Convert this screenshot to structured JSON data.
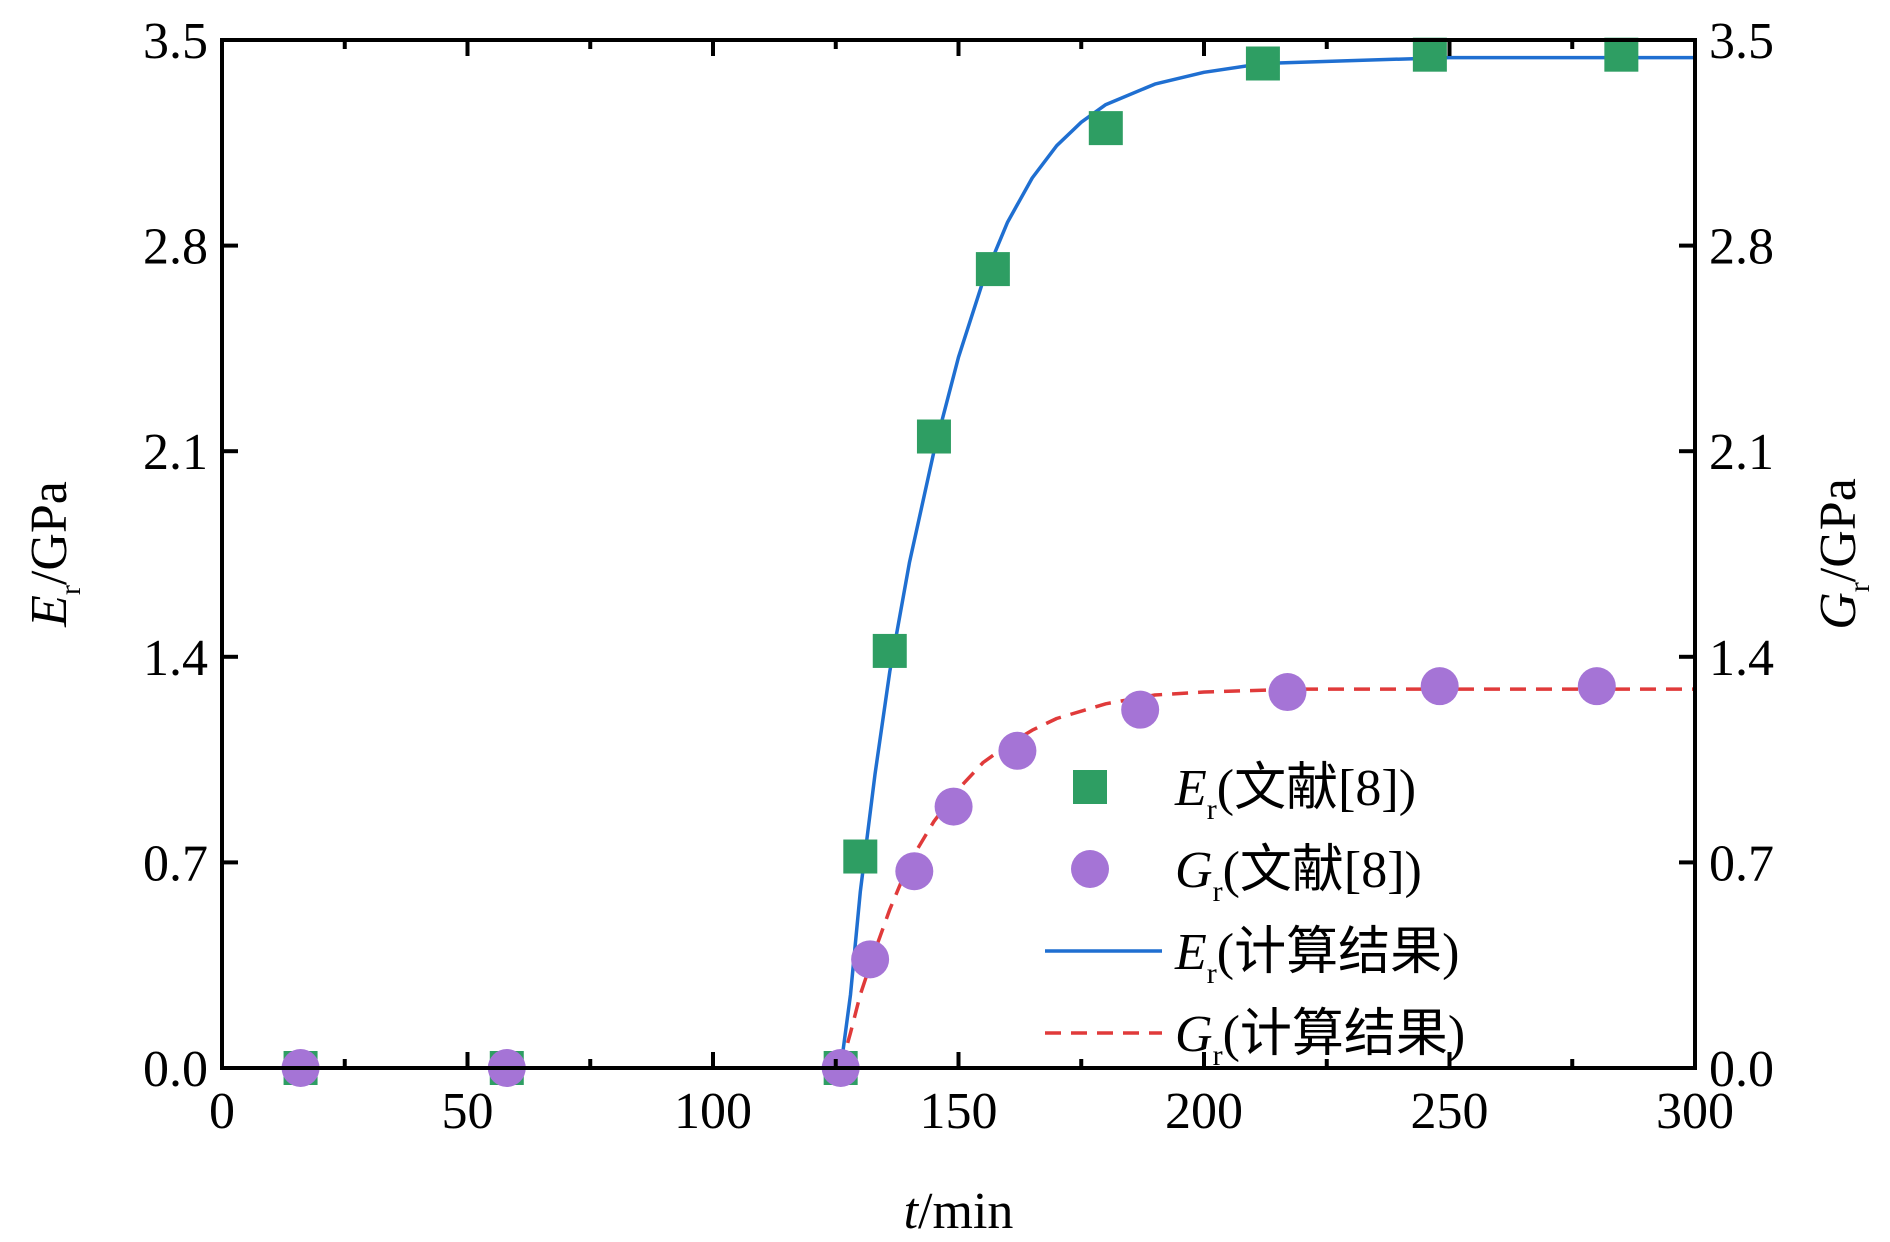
{
  "chart_data": {
    "type": "scatter",
    "x_axis": {
      "label_var": "t",
      "label_unit": "/min",
      "range": [
        0,
        300
      ],
      "ticks": [
        "0",
        "50",
        "100",
        "150",
        "200",
        "250",
        "300"
      ],
      "minor_step": 25
    },
    "y_left": {
      "label_var": "E",
      "label_sub": "r",
      "label_unit": "/GPa",
      "range": [
        0.0,
        3.5
      ],
      "ticks": [
        "0.0",
        "0.7",
        "1.4",
        "2.1",
        "2.8",
        "3.5"
      ]
    },
    "y_right": {
      "label_var": "G",
      "label_sub": "r",
      "label_unit": "/GPa",
      "range": [
        0.0,
        3.5
      ],
      "ticks": [
        "0.0",
        "0.7",
        "1.4",
        "2.1",
        "2.8",
        "3.5"
      ]
    },
    "grid": false,
    "legend_position": "bottom-right",
    "series": [
      {
        "name": "Er(文献[8])",
        "legend_var": "E",
        "legend_sub": "r",
        "legend_text": "(文献[8])",
        "kind": "marker",
        "marker": "square",
        "color": "#2e9e63",
        "x": [
          16,
          58,
          126,
          130,
          136,
          145,
          157,
          180,
          212,
          246,
          285
        ],
        "y": [
          0.0,
          0.0,
          0.0,
          0.72,
          1.42,
          2.15,
          2.72,
          3.2,
          3.42,
          3.45,
          3.45
        ]
      },
      {
        "name": "Gr(文献[8])",
        "legend_var": "G",
        "legend_sub": "r",
        "legend_text": "(文献[8])",
        "kind": "marker",
        "marker": "circle",
        "color": "#a574d6",
        "x": [
          16,
          58,
          126,
          132,
          141,
          149,
          162,
          187,
          217,
          248,
          280
        ],
        "y": [
          0.0,
          0.0,
          0.0,
          0.37,
          0.67,
          0.89,
          1.08,
          1.22,
          1.28,
          1.3,
          1.3
        ]
      },
      {
        "name": "Er(计算结果)",
        "legend_var": "E",
        "legend_sub": "r",
        "legend_text": "(计算结果)",
        "kind": "line",
        "dash": "solid",
        "color": "#1f6fd1",
        "x": [
          0,
          126,
          128,
          130,
          133,
          136,
          140,
          145,
          150,
          155,
          160,
          165,
          170,
          175,
          180,
          190,
          200,
          212,
          230,
          250,
          270,
          300
        ],
        "y": [
          0.0,
          0.0,
          0.25,
          0.6,
          1.0,
          1.35,
          1.72,
          2.1,
          2.42,
          2.68,
          2.88,
          3.03,
          3.14,
          3.22,
          3.28,
          3.35,
          3.39,
          3.42,
          3.43,
          3.44,
          3.44,
          3.44
        ]
      },
      {
        "name": "Gr(计算结果)",
        "legend_var": "G",
        "legend_sub": "r",
        "legend_text": "(计算结果)",
        "kind": "line",
        "dash": "dashed",
        "color": "#e03a3a",
        "x": [
          126,
          128,
          130,
          133,
          136,
          140,
          145,
          150,
          155,
          160,
          165,
          170,
          180,
          190,
          200,
          220,
          250,
          300
        ],
        "y": [
          0.0,
          0.12,
          0.25,
          0.4,
          0.54,
          0.7,
          0.84,
          0.95,
          1.04,
          1.1,
          1.15,
          1.19,
          1.24,
          1.27,
          1.28,
          1.29,
          1.29,
          1.29
        ]
      }
    ]
  }
}
